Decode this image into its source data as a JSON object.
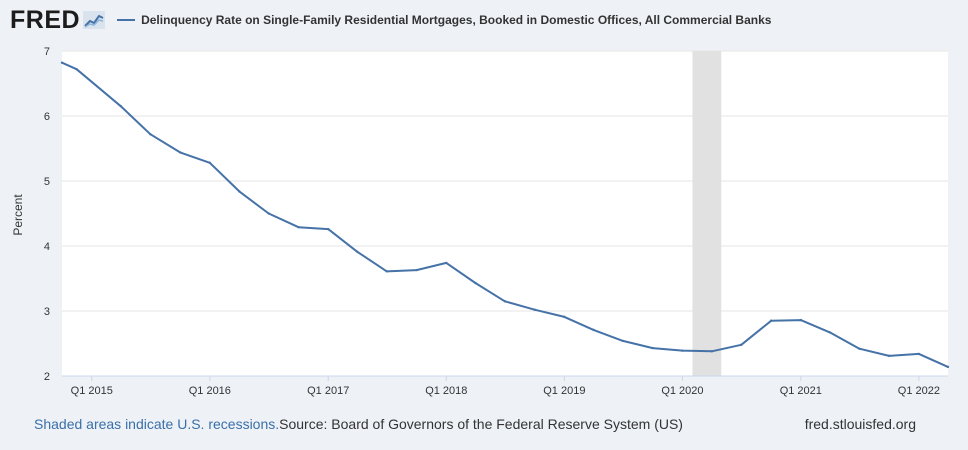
{
  "header": {
    "logo": "FRED",
    "logo_icon": "fred-graph-icon",
    "legend_label": "Delinquency Rate on Single-Family Residential Mortgages, Booked in Domestic Offices, All Commercial Banks"
  },
  "footer": {
    "recession_note": "Shaded areas indicate U.S. recessions.",
    "source": "Source: Board of Governors of the Federal Reserve System (US)",
    "site": "fred.stlouisfed.org"
  },
  "colors": {
    "series": "#4572a7",
    "recession": "#e1e1e1",
    "grid": "#e6e6e6"
  },
  "chart_data": {
    "type": "line",
    "title": "",
    "xlabel": "",
    "ylabel": "Percent",
    "ylim": [
      2,
      7
    ],
    "yticks": [
      2,
      3,
      4,
      5,
      6,
      7
    ],
    "xlim": [
      "2014-10-01",
      "2022-04-01"
    ],
    "xticks": [
      {
        "date": "2015-01-01",
        "label": "Q1 2015"
      },
      {
        "date": "2016-01-01",
        "label": "Q1 2016"
      },
      {
        "date": "2017-01-01",
        "label": "Q1 2017"
      },
      {
        "date": "2018-01-01",
        "label": "Q1 2018"
      },
      {
        "date": "2019-01-01",
        "label": "Q1 2019"
      },
      {
        "date": "2020-01-01",
        "label": "Q1 2020"
      },
      {
        "date": "2021-01-01",
        "label": "Q1 2021"
      },
      {
        "date": "2022-01-01",
        "label": "Q1 2022"
      }
    ],
    "recessions": [
      {
        "start": "2020-02-01",
        "end": "2020-04-30"
      }
    ],
    "grid": true,
    "series": [
      {
        "name": "Delinquency Rate on Single-Family Residential Mortgages, Booked in Domestic Offices, All Commercial Banks",
        "points": [
          [
            "2014-10-01",
            6.82
          ],
          [
            "2014-11-15",
            6.72
          ],
          [
            "2015-04-01",
            6.15
          ],
          [
            "2015-07-01",
            5.72
          ],
          [
            "2015-10-01",
            5.44
          ],
          [
            "2016-01-01",
            5.28
          ],
          [
            "2016-04-01",
            4.84
          ],
          [
            "2016-07-01",
            4.5
          ],
          [
            "2016-10-01",
            4.29
          ],
          [
            "2017-01-01",
            4.26
          ],
          [
            "2017-04-01",
            3.91
          ],
          [
            "2017-07-01",
            3.61
          ],
          [
            "2017-10-01",
            3.63
          ],
          [
            "2018-01-01",
            3.74
          ],
          [
            "2018-04-01",
            3.43
          ],
          [
            "2018-07-01",
            3.15
          ],
          [
            "2018-10-01",
            3.02
          ],
          [
            "2019-01-01",
            2.91
          ],
          [
            "2019-04-01",
            2.71
          ],
          [
            "2019-07-01",
            2.54
          ],
          [
            "2019-10-01",
            2.43
          ],
          [
            "2020-01-01",
            2.39
          ],
          [
            "2020-04-01",
            2.38
          ],
          [
            "2020-07-01",
            2.48
          ],
          [
            "2020-10-01",
            2.85
          ],
          [
            "2021-01-01",
            2.86
          ],
          [
            "2021-04-01",
            2.67
          ],
          [
            "2021-07-01",
            2.42
          ],
          [
            "2021-10-01",
            2.31
          ],
          [
            "2022-01-01",
            2.34
          ],
          [
            "2022-04-01",
            2.14
          ]
        ]
      }
    ]
  }
}
